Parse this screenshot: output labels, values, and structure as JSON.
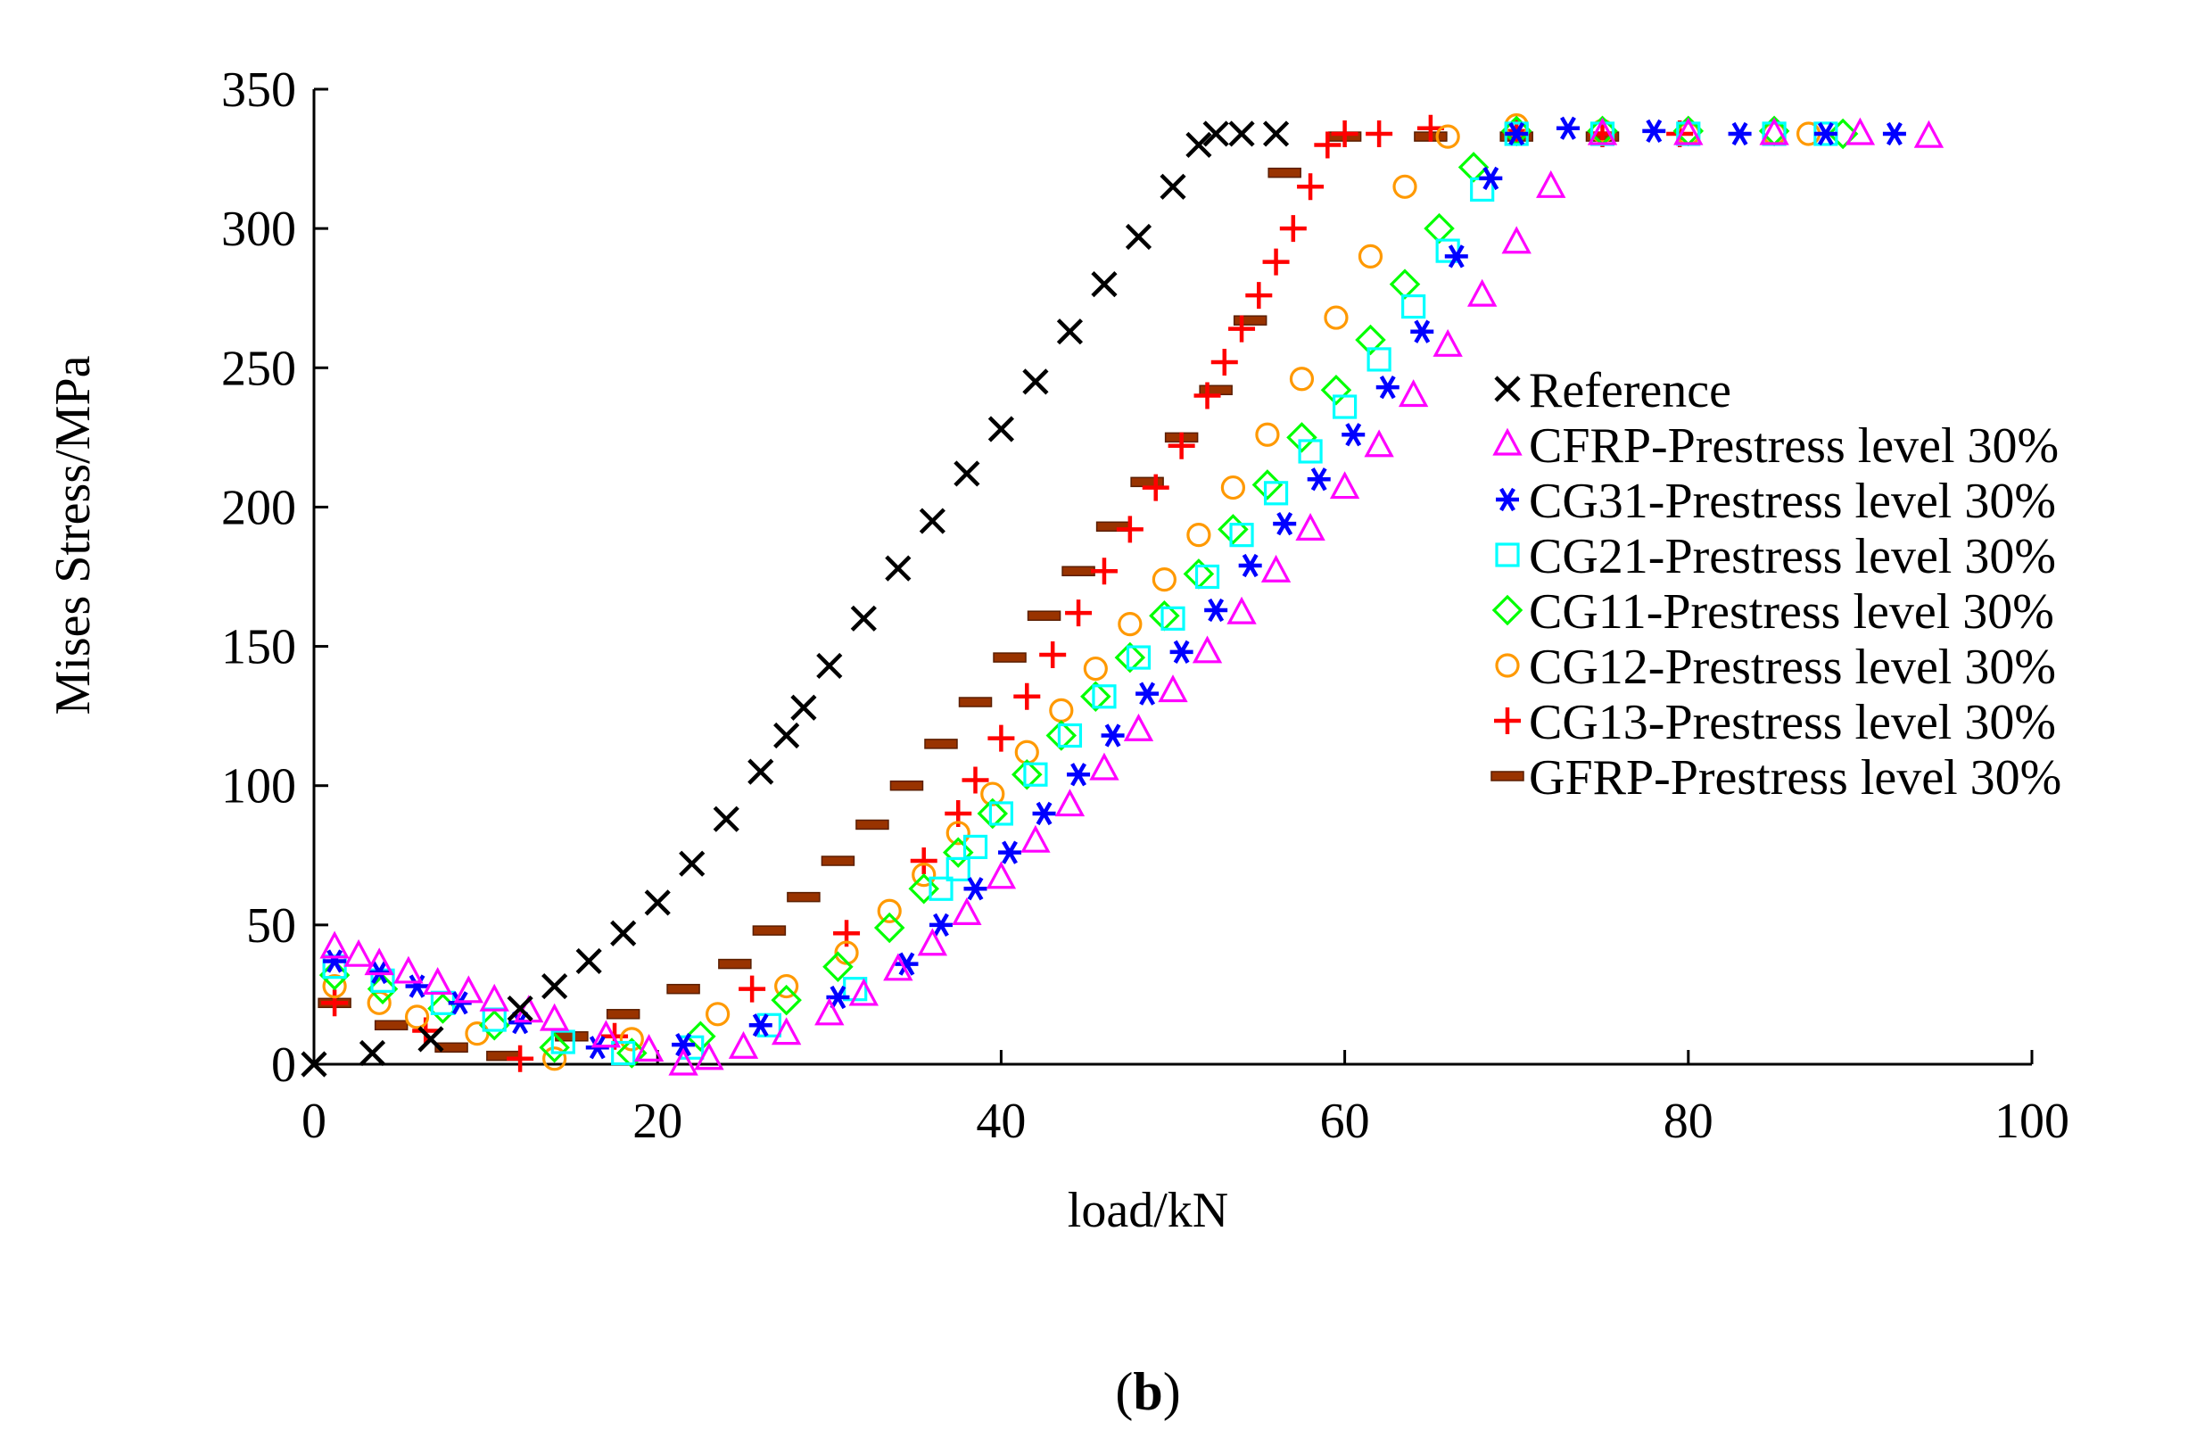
{
  "chart_data": {
    "type": "scatter",
    "xlabel": "load/kN",
    "ylabel": "Mises Stress/MPa",
    "xlim": [
      0,
      100
    ],
    "ylim": [
      0,
      350
    ],
    "xticks": [
      0,
      20,
      40,
      60,
      80,
      100
    ],
    "yticks": [
      0,
      50,
      100,
      150,
      200,
      250,
      300,
      350
    ],
    "legend_position": "right",
    "caption": {
      "open": "(",
      "letter": "b",
      "close": ")"
    },
    "series": [
      {
        "name": "Reference",
        "marker": "x",
        "color": "#000000",
        "x": [
          0,
          3.4,
          6.8,
          12,
          14,
          16,
          18,
          20,
          22,
          24,
          26,
          27.5,
          28.5,
          30,
          32,
          34,
          36,
          38,
          40,
          42,
          44,
          46,
          48,
          50,
          51.5,
          52.5,
          54,
          56
        ],
        "y": [
          0,
          4,
          9,
          20,
          28,
          37,
          47,
          58,
          72,
          88,
          105,
          118,
          128,
          143,
          160,
          178,
          195,
          212,
          228,
          245,
          263,
          280,
          297,
          315,
          330,
          334,
          334,
          334
        ]
      },
      {
        "name": "CFRP-Prestress level 30%",
        "marker": "triangle",
        "color": "#ff00ff",
        "x": [
          1.2,
          2.6,
          3.8,
          5.5,
          7.2,
          9,
          10.5,
          12.5,
          14,
          17,
          19.5,
          21.5,
          23,
          25,
          27.5,
          30,
          32,
          34,
          36,
          38,
          40,
          42,
          44,
          46,
          48,
          50,
          52,
          54,
          56,
          58,
          60,
          62,
          64,
          66,
          68,
          70,
          72,
          75,
          80,
          85,
          90,
          94
        ],
        "y": [
          42,
          39,
          36,
          33,
          29,
          26,
          23,
          19,
          16,
          10,
          5,
          0,
          2,
          6,
          11,
          18,
          25,
          34,
          43,
          54,
          67,
          80,
          93,
          106,
          120,
          134,
          148,
          162,
          177,
          192,
          207,
          222,
          240,
          258,
          276,
          295,
          315,
          334,
          334,
          334,
          334,
          333
        ]
      },
      {
        "name": "CG31-Prestress level 30%",
        "marker": "star",
        "color": "#0000ff",
        "x": [
          1.2,
          3.8,
          6,
          8.5,
          12,
          16.5,
          21.5,
          26,
          30.5,
          34.5,
          36.5,
          38.5,
          40.5,
          42.5,
          44.5,
          46.5,
          48.5,
          50.5,
          52.5,
          54.5,
          56.5,
          58.5,
          60.5,
          62.5,
          64.5,
          66.5,
          68.5,
          70,
          73,
          78,
          83,
          88,
          92
        ],
        "y": [
          37,
          33,
          28,
          22,
          15,
          6,
          7,
          14,
          24,
          36,
          50,
          63,
          76,
          90,
          104,
          118,
          133,
          148,
          163,
          179,
          194,
          210,
          226,
          243,
          263,
          290,
          318,
          334,
          336,
          335,
          334,
          334,
          334
        ]
      },
      {
        "name": "CG21-Prestress level 30%",
        "marker": "square",
        "color": "#00ffff",
        "x": [
          1.2,
          4,
          7.5,
          10.5,
          14.5,
          18,
          22,
          26.5,
          31.5,
          36.5,
          37.5,
          38.5,
          40,
          42,
          44,
          46,
          48,
          50,
          52,
          54,
          56,
          58,
          60,
          62,
          64,
          66,
          68,
          70,
          75,
          80,
          85,
          88
        ],
        "y": [
          35,
          30,
          22,
          16,
          8,
          4,
          6,
          14,
          27,
          63,
          70,
          78,
          90,
          104,
          118,
          132,
          146,
          160,
          175,
          190,
          205,
          220,
          236,
          253,
          272,
          292,
          314,
          334,
          334,
          334,
          334,
          334
        ]
      },
      {
        "name": "CG11-Prestress level 30%",
        "marker": "diamond",
        "color": "#00ff00",
        "x": [
          1.2,
          4,
          7.5,
          10.5,
          14,
          18.5,
          22.5,
          27.5,
          30.5,
          33.5,
          35.5,
          37.5,
          39.5,
          41.5,
          43.5,
          45.5,
          47.5,
          49.5,
          51.5,
          53.5,
          55.5,
          57.5,
          59.5,
          61.5,
          63.5,
          65.5,
          67.5,
          70,
          75,
          80,
          85,
          89
        ],
        "y": [
          32,
          27,
          20,
          14,
          6,
          4,
          10,
          23,
          35,
          49,
          63,
          76,
          90,
          104,
          118,
          132,
          146,
          161,
          176,
          192,
          208,
          225,
          242,
          260,
          280,
          300,
          322,
          335,
          335,
          335,
          335,
          334
        ]
      },
      {
        "name": "CG12-Prestress level 30%",
        "marker": "circle",
        "color": "#ff9900",
        "x": [
          1.2,
          3.8,
          6,
          9.5,
          14,
          18.5,
          23.5,
          27.5,
          31,
          33.5,
          35.5,
          37.5,
          39.5,
          41.5,
          43.5,
          45.5,
          47.5,
          49.5,
          51.5,
          53.5,
          55.5,
          57.5,
          59.5,
          61.5,
          63.5,
          66,
          70,
          75,
          80,
          85,
          87
        ],
        "y": [
          28,
          22,
          17,
          11,
          2,
          9,
          18,
          28,
          40,
          55,
          68,
          83,
          97,
          112,
          127,
          142,
          158,
          174,
          190,
          207,
          226,
          246,
          268,
          290,
          315,
          333,
          337,
          335,
          334,
          334,
          334
        ]
      },
      {
        "name": "CG13-Prestress level 30%",
        "marker": "plus",
        "color": "#ff0000",
        "x": [
          1.2,
          6.5,
          12,
          17.5,
          25.5,
          31,
          35.5,
          37.5,
          38.5,
          40,
          41.5,
          43,
          44.5,
          46,
          47.5,
          49,
          50.5,
          52,
          53,
          54,
          55,
          56,
          57,
          58,
          59,
          60,
          62,
          65,
          70,
          75,
          79.5
        ],
        "y": [
          22,
          12,
          2,
          10,
          27,
          47,
          73,
          90,
          102,
          117,
          132,
          147,
          162,
          177,
          192,
          207,
          222,
          240,
          252,
          264,
          276,
          288,
          300,
          315,
          330,
          334,
          334,
          336,
          335,
          334,
          334
        ]
      },
      {
        "name": "GFRP-Prestress level 30%",
        "marker": "dash",
        "color": "#993300",
        "x": [
          1.2,
          4.5,
          8,
          11,
          15,
          18,
          21.5,
          24.5,
          26.5,
          28.5,
          30.5,
          32.5,
          34.5,
          36.5,
          38.5,
          40.5,
          42.5,
          44.5,
          46.5,
          48.5,
          50.5,
          52.5,
          54.5,
          56.5,
          60,
          65,
          70,
          75
        ],
        "y": [
          22,
          14,
          6,
          3,
          10,
          18,
          27,
          36,
          48,
          60,
          73,
          86,
          100,
          115,
          130,
          146,
          161,
          177,
          193,
          209,
          225,
          242,
          267,
          320,
          333,
          333,
          333,
          333
        ]
      }
    ]
  }
}
